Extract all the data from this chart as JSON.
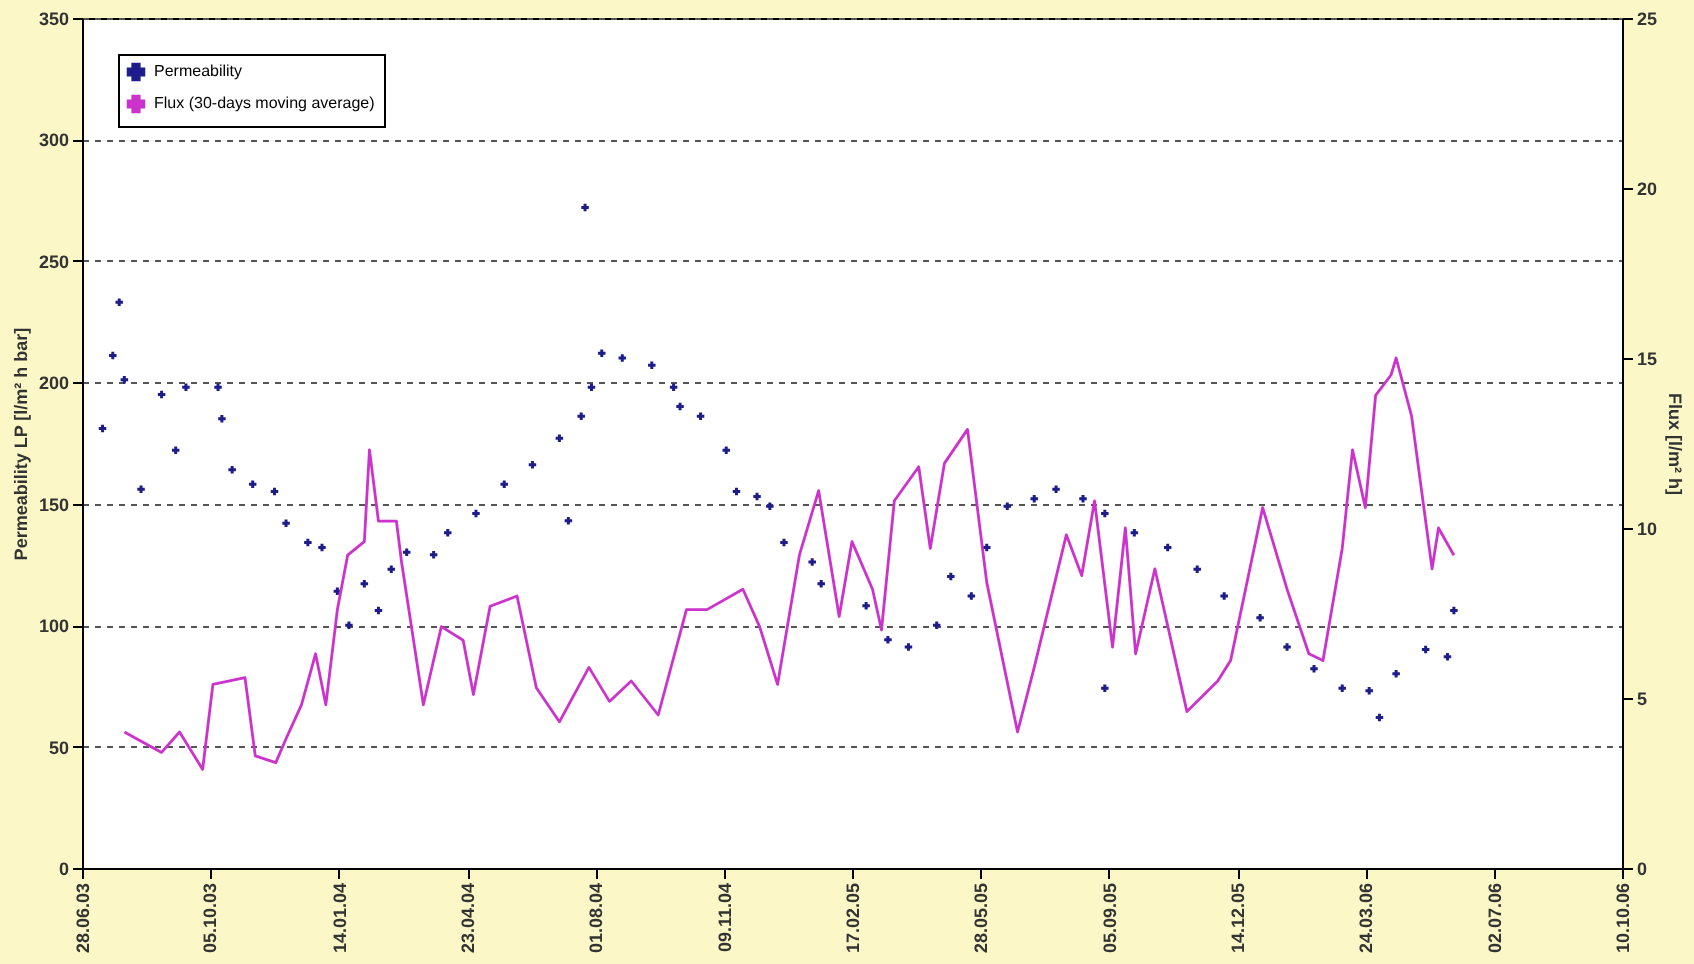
{
  "chart_data": {
    "type": "scatter",
    "ylabel": "Permeability LP [l/m² h bar]",
    "y2label": "Flux [l/m² h]",
    "xlim": [
      "2003-06-28",
      "2006-10-10"
    ],
    "xticks": [
      {
        "value": "2003-06-28",
        "label": "28.06.03"
      },
      {
        "value": "2003-10-05",
        "label": "05.10.03"
      },
      {
        "value": "2004-01-14",
        "label": "14.01.04"
      },
      {
        "value": "2004-04-23",
        "label": "23.04.04"
      },
      {
        "value": "2004-08-01",
        "label": "01.08.04"
      },
      {
        "value": "2004-11-09",
        "label": "09.11.04"
      },
      {
        "value": "2005-02-17",
        "label": "17.02.05"
      },
      {
        "value": "2005-05-28",
        "label": "28.05.05"
      },
      {
        "value": "2005-09-05",
        "label": "05.09.05"
      },
      {
        "value": "2005-12-14",
        "label": "14.12.05"
      },
      {
        "value": "2006-03-24",
        "label": "24.03.06"
      },
      {
        "value": "2006-07-02",
        "label": "02.07.06"
      },
      {
        "value": "2006-10-10",
        "label": "10.10.06"
      }
    ],
    "ylim": [
      0,
      350
    ],
    "yticks": [
      0,
      50,
      100,
      150,
      200,
      250,
      300,
      350
    ],
    "y2lim": [
      0,
      25
    ],
    "y2ticks": [
      0,
      5,
      10,
      15,
      20,
      25
    ],
    "grid": "y",
    "legend": "top left",
    "series": [
      {
        "name": "Permeability",
        "marker": "cross",
        "color": "#1c1c8a",
        "x": [
          "2003-07-14",
          "2003-07-22",
          "2003-07-27",
          "2003-07-31",
          "2003-08-13",
          "2003-08-29",
          "2003-09-09",
          "2003-09-17",
          "2003-10-12",
          "2003-10-15",
          "2003-10-23",
          "2003-11-08",
          "2003-11-25",
          "2003-12-04",
          "2003-12-21",
          "2004-01-01",
          "2004-01-13",
          "2004-01-22",
          "2004-02-03",
          "2004-02-14",
          "2004-02-24",
          "2004-03-07",
          "2004-03-28",
          "2004-04-08",
          "2004-04-30",
          "2004-05-22",
          "2004-06-13",
          "2004-07-04",
          "2004-07-11",
          "2004-07-21",
          "2004-07-24",
          "2004-07-29",
          "2004-08-06",
          "2004-08-22",
          "2004-09-14",
          "2004-10-01",
          "2004-10-06",
          "2004-10-22",
          "2004-11-11",
          "2004-11-19",
          "2004-12-05",
          "2004-12-15",
          "2004-12-26",
          "2005-01-17",
          "2005-01-24",
          "2005-02-28",
          "2005-03-17",
          "2005-04-02",
          "2005-04-24",
          "2005-05-05",
          "2005-05-21",
          "2005-06-02",
          "2005-06-18",
          "2005-07-09",
          "2005-07-26",
          "2005-08-16",
          "2005-09-02",
          "2005-09-02",
          "2005-09-25",
          "2005-10-21",
          "2005-11-13",
          "2005-12-04",
          "2006-01-01",
          "2006-01-22",
          "2006-02-12",
          "2006-03-06",
          "2006-03-27",
          "2006-04-04",
          "2006-04-17",
          "2006-05-10",
          "2006-05-27",
          "2006-06-01"
        ],
        "values": [
          181,
          211,
          233,
          201,
          156,
          195,
          172,
          198,
          198,
          185,
          164,
          158,
          155,
          142,
          134,
          132,
          114,
          100,
          117,
          106,
          123,
          130,
          129,
          138,
          146,
          158,
          166,
          177,
          143,
          186,
          272,
          198,
          212,
          210,
          207,
          198,
          190,
          186,
          172,
          155,
          153,
          149,
          134,
          126,
          117,
          108,
          94,
          91,
          100,
          120,
          112,
          132,
          149,
          152,
          156,
          152,
          146,
          74,
          138,
          132,
          123,
          112,
          103,
          91,
          82,
          74,
          73,
          62,
          80,
          90,
          87,
          106
        ]
      },
      {
        "name": "Flux (30-days moving average)",
        "type": "line",
        "axis": "y2",
        "color": "#cc33cc",
        "line_style": "solid",
        "marker": "none",
        "x": [
          "2003-07-31",
          "2003-08-29",
          "2003-09-12",
          "2003-09-30",
          "2003-10-08",
          "2003-11-02",
          "2003-11-10",
          "2003-11-26",
          "2003-12-04",
          "2003-12-16",
          "2003-12-27",
          "2004-01-04",
          "2004-01-13",
          "2004-01-21",
          "2004-02-03",
          "2004-02-07",
          "2004-02-14",
          "2004-02-28",
          "2004-03-03",
          "2004-03-20",
          "2004-04-03",
          "2004-04-20",
          "2004-04-28",
          "2004-05-11",
          "2004-06-01",
          "2004-06-16",
          "2004-07-04",
          "2004-07-27",
          "2004-08-12",
          "2004-08-29",
          "2004-09-19",
          "2004-10-11",
          "2004-10-27",
          "2004-11-24",
          "2004-12-07",
          "2004-12-21",
          "2005-01-07",
          "2005-01-22",
          "2005-02-07",
          "2005-02-17",
          "2005-03-05",
          "2005-03-12",
          "2005-03-22",
          "2005-04-10",
          "2005-04-19",
          "2005-04-30",
          "2005-05-18",
          "2005-06-02",
          "2005-06-26",
          "2005-07-09",
          "2005-08-03",
          "2005-08-15",
          "2005-08-25",
          "2005-09-08",
          "2005-09-18",
          "2005-09-26",
          "2005-10-11",
          "2005-11-05",
          "2005-11-29",
          "2005-12-09",
          "2006-01-03",
          "2006-01-22",
          "2006-02-08",
          "2006-02-19",
          "2006-03-06",
          "2006-03-14",
          "2006-03-24",
          "2006-04-01",
          "2006-04-13",
          "2006-04-17",
          "2006-04-29",
          "2006-05-15",
          "2006-05-20",
          "2006-06-01"
        ],
        "values": [
          4.0,
          3.4,
          4.0,
          2.9,
          5.4,
          5.6,
          3.3,
          3.1,
          3.8,
          4.8,
          6.3,
          4.8,
          7.6,
          9.2,
          9.6,
          12.3,
          10.2,
          10.2,
          9.0,
          4.8,
          7.1,
          6.7,
          5.1,
          7.7,
          8.0,
          5.3,
          4.3,
          5.9,
          4.9,
          5.5,
          4.5,
          7.6,
          7.6,
          8.2,
          7.1,
          5.4,
          9.2,
          11.1,
          7.4,
          9.6,
          8.2,
          7.0,
          10.8,
          11.8,
          9.4,
          11.9,
          12.9,
          8.4,
          4.0,
          5.9,
          9.8,
          8.6,
          10.8,
          6.5,
          10.0,
          6.3,
          8.8,
          4.6,
          5.5,
          6.1,
          10.6,
          8.2,
          6.3,
          6.1,
          9.4,
          12.3,
          10.6,
          13.9,
          14.5,
          15.0,
          13.3,
          8.8,
          10.0,
          9.2
        ]
      }
    ]
  }
}
